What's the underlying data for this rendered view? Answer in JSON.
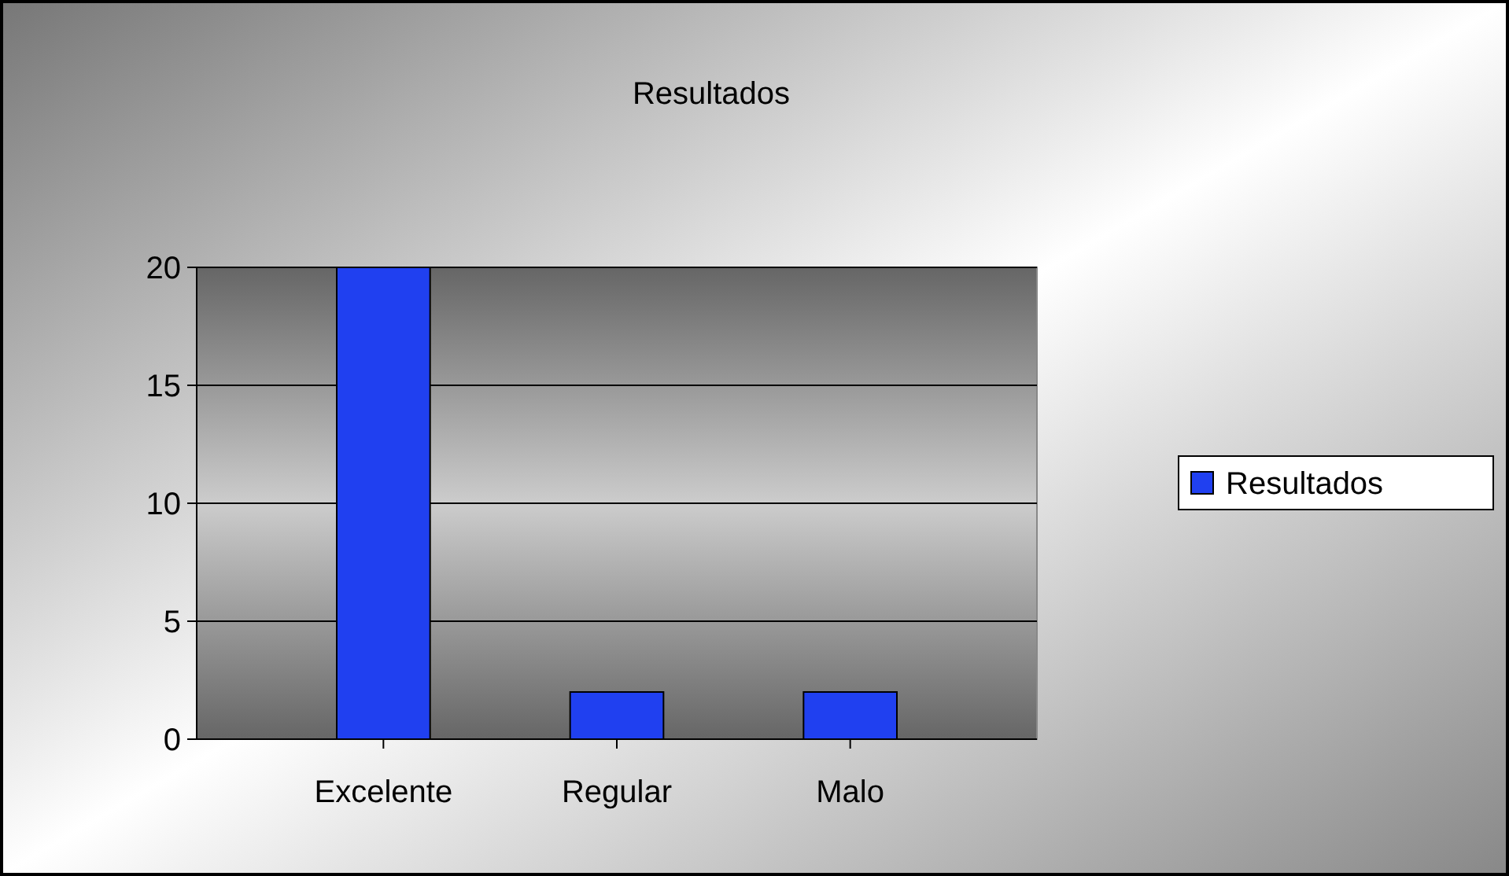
{
  "chart_data": {
    "type": "bar",
    "title": "Resultados",
    "categories": [
      "Excelente",
      "Regular",
      "Malo"
    ],
    "series": [
      {
        "name": "Resultados",
        "color": "#2040f0",
        "values": [
          20,
          2,
          2
        ]
      }
    ],
    "ylim": [
      0,
      20
    ],
    "yticks": [
      0,
      5,
      10,
      15,
      20
    ],
    "grid": "y",
    "legend": "right"
  }
}
